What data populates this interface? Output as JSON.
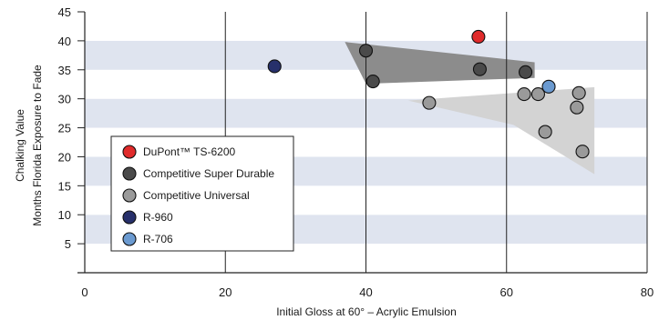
{
  "chart_data": {
    "type": "scatter",
    "xlabel": "Initial Gloss at 60° – Acrylic Emulsion",
    "ylabel_line1": "Chalking Value",
    "ylabel_line2": "Months Florida Exposure to Fade",
    "xlim": [
      0,
      80
    ],
    "ylim": [
      0,
      45
    ],
    "x_ticks": [
      "0",
      "20",
      "40",
      "60",
      "80"
    ],
    "y_ticks": [
      "5",
      "10",
      "15",
      "20",
      "25",
      "30",
      "35",
      "40",
      "45"
    ],
    "grid": "banded rows with vertical gridlines",
    "legend_position": "bottom-left",
    "series": [
      {
        "name": "DuPont™ TS-6200",
        "color": "#e02b2b",
        "points": [
          [
            56,
            40.7
          ]
        ]
      },
      {
        "name": "Competitive Super Durable",
        "color": "#4a4a4a",
        "points": [
          [
            40,
            38.3
          ],
          [
            41,
            33
          ],
          [
            56.2,
            35.1
          ],
          [
            62.7,
            34.6
          ]
        ]
      },
      {
        "name": "Competitive Universal",
        "color": "#9a9a9a",
        "points": [
          [
            49,
            29.3
          ],
          [
            62.5,
            30.8
          ],
          [
            64.5,
            30.8
          ],
          [
            70.3,
            31
          ],
          [
            70,
            28.5
          ],
          [
            65.5,
            24.3
          ],
          [
            70.8,
            20.9
          ]
        ]
      },
      {
        "name": "R-960",
        "color": "#27306b",
        "points": [
          [
            27,
            35.6
          ]
        ]
      },
      {
        "name": "R-706",
        "color": "#6b9ad0",
        "points": [
          [
            66,
            32.1
          ]
        ]
      }
    ],
    "regions": [
      {
        "name": "super-durable-region",
        "color": "#8c8c8c",
        "polygon": [
          [
            37,
            39.8
          ],
          [
            64,
            36.3
          ],
          [
            64,
            33.6
          ],
          [
            40,
            32.6
          ]
        ]
      },
      {
        "name": "universal-region",
        "color": "#d3d3d3",
        "polygon": [
          [
            46,
            29.7
          ],
          [
            72.5,
            32
          ],
          [
            72.5,
            17
          ],
          [
            61,
            25.5
          ]
        ]
      }
    ]
  }
}
